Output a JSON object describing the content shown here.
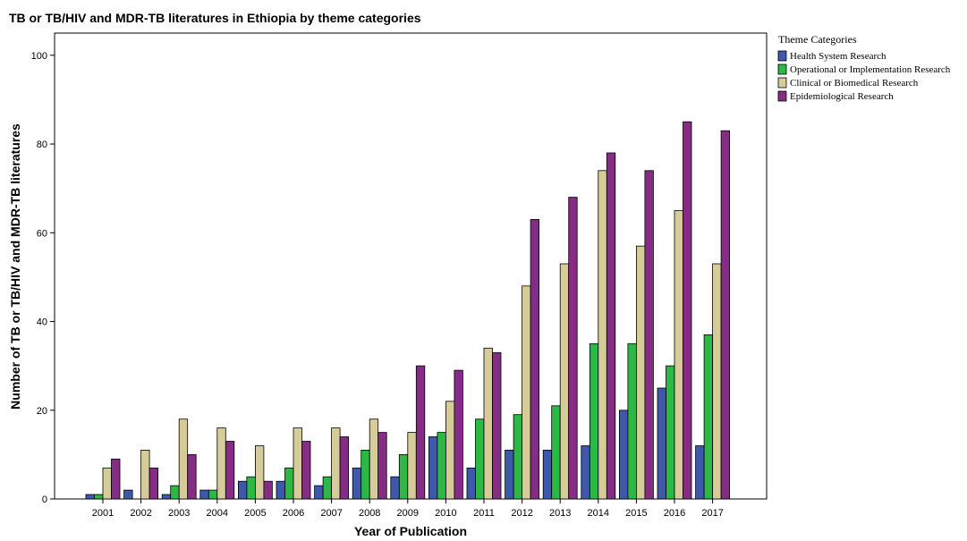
{
  "chart_data": {
    "type": "bar",
    "title": "TB or TB/HIV and MDR-TB literatures in Ethiopia by theme categories",
    "xlabel": "Year of Publication",
    "ylabel": "Number of TB or TB/HIV and MDR-TB literatures",
    "ylim": [
      0,
      105
    ],
    "yticks": [
      "0",
      "20",
      "40",
      "60",
      "80",
      "100"
    ],
    "grid": false,
    "legend_position": "top-right",
    "legend_title": "Theme Categories",
    "categories": [
      "2001",
      "2002",
      "2003",
      "2004",
      "2005",
      "2006",
      "2007",
      "2008",
      "2009",
      "2010",
      "2011",
      "2012",
      "2013",
      "2014",
      "2015",
      "2016",
      "2017"
    ],
    "series": [
      {
        "name": "Health System Research",
        "color": "#3e58ac",
        "values": [
          1,
          2,
          1,
          2,
          4,
          4,
          3,
          7,
          5,
          14,
          7,
          11,
          11,
          12,
          20,
          25,
          12
        ]
      },
      {
        "name": "Operational or Implementation Research",
        "color": "#2bb845",
        "values": [
          1,
          0,
          3,
          2,
          5,
          7,
          5,
          11,
          10,
          15,
          18,
          19,
          21,
          35,
          35,
          30,
          37
        ]
      },
      {
        "name": "Clinical or Biomedical Research",
        "color": "#d5cc9a",
        "values": [
          7,
          11,
          18,
          16,
          12,
          16,
          16,
          18,
          15,
          22,
          34,
          48,
          53,
          74,
          57,
          65,
          53
        ]
      },
      {
        "name": "Epidemiological Research",
        "color": "#852d85",
        "values": [
          9,
          7,
          10,
          13,
          4,
          13,
          14,
          15,
          30,
          29,
          33,
          63,
          68,
          78,
          74,
          85,
          83
        ]
      }
    ]
  }
}
